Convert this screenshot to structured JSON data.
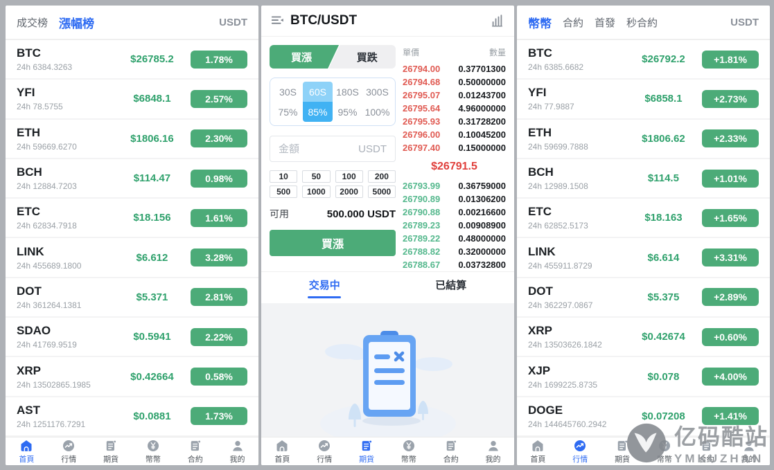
{
  "colors": {
    "accent_green": "#4cab78",
    "accent_red": "#e04f49",
    "accent_blue": "#2e6bf2",
    "sky_blue": "#41b2f3",
    "sky_blue_light": "#8ed2f8"
  },
  "watermark": {
    "title": "亿码酷站",
    "subtitle": "YMKUZHAN"
  },
  "nav": {
    "items": [
      {
        "label": "首頁",
        "icon": "home"
      },
      {
        "label": "行情",
        "icon": "trend"
      },
      {
        "label": "期貨",
        "icon": "futures-doc"
      },
      {
        "label": "幣幣",
        "icon": "coin"
      },
      {
        "label": "合約",
        "icon": "contract-doc"
      },
      {
        "label": "我的",
        "icon": "person"
      }
    ]
  },
  "left_panel": {
    "tab_volume": "成交榜",
    "tab_gainers": "漲幅榜",
    "currency": "USDT",
    "nav_active": 0,
    "coins": [
      {
        "symbol": "BTC",
        "volume": "24h 6384.3263",
        "price": "$26785.2",
        "change": "1.78%"
      },
      {
        "symbol": "YFI",
        "volume": "24h 78.5755",
        "price": "$6848.1",
        "change": "2.57%"
      },
      {
        "symbol": "ETH",
        "volume": "24h 59669.6270",
        "price": "$1806.16",
        "change": "2.30%"
      },
      {
        "symbol": "BCH",
        "volume": "24h 12884.7203",
        "price": "$114.47",
        "change": "0.98%"
      },
      {
        "symbol": "ETC",
        "volume": "24h 62834.7918",
        "price": "$18.156",
        "change": "1.61%"
      },
      {
        "symbol": "LINK",
        "volume": "24h 455689.1800",
        "price": "$6.612",
        "change": "3.28%"
      },
      {
        "symbol": "DOT",
        "volume": "24h 361264.1381",
        "price": "$5.371",
        "change": "2.81%"
      },
      {
        "symbol": "SDAO",
        "volume": "24h 41769.9519",
        "price": "$0.5941",
        "change": "2.22%"
      },
      {
        "symbol": "XRP",
        "volume": "24h 13502865.1985",
        "price": "$0.42664",
        "change": "0.58%"
      },
      {
        "symbol": "AST",
        "volume": "24h 1251176.7291",
        "price": "$0.0881",
        "change": "1.73%"
      }
    ]
  },
  "middle_panel": {
    "title": "BTC/USDT",
    "nav_active": 2,
    "trade": {
      "buy_up_tab": "買漲",
      "buy_down_tab": "買跌",
      "durations": [
        "30S",
        "60S",
        "180S",
        "300S"
      ],
      "durations_active": 1,
      "percents": [
        "75%",
        "85%",
        "95%",
        "100%"
      ],
      "percents_active": 1,
      "amount_placeholder": "金額",
      "amount_unit": "USDT",
      "quick_amounts": [
        "10",
        "50",
        "100",
        "200",
        "500",
        "1000",
        "2000",
        "5000"
      ],
      "available_label": "可用",
      "available_value": "500.000 USDT",
      "submit_label": "買漲"
    },
    "orderbook": {
      "price_header": "單價",
      "amount_header": "數量",
      "asks": [
        {
          "p": "26794.00",
          "q": "0.37701300"
        },
        {
          "p": "26794.68",
          "q": "0.50000000"
        },
        {
          "p": "26795.07",
          "q": "0.01243700"
        },
        {
          "p": "26795.64",
          "q": "4.96000000"
        },
        {
          "p": "26795.93",
          "q": "0.31728200"
        },
        {
          "p": "26796.00",
          "q": "0.10045200"
        },
        {
          "p": "26797.40",
          "q": "0.15000000"
        }
      ],
      "current_price": "$26791.5",
      "bids": [
        {
          "p": "26793.99",
          "q": "0.36759000"
        },
        {
          "p": "26790.89",
          "q": "0.01306200"
        },
        {
          "p": "26790.88",
          "q": "0.00216600"
        },
        {
          "p": "26789.23",
          "q": "0.00908900"
        },
        {
          "p": "26789.22",
          "q": "0.48000000"
        },
        {
          "p": "26788.82",
          "q": "0.32000000"
        },
        {
          "p": "26788.67",
          "q": "0.03732800"
        }
      ]
    },
    "orders_tabs": {
      "trading": "交易中",
      "settled": "已結算"
    }
  },
  "right_panel": {
    "tabs": [
      "幣幣",
      "合約",
      "首發",
      "秒合約"
    ],
    "currency": "USDT",
    "nav_active": 1,
    "coins": [
      {
        "symbol": "BTC",
        "volume": "24h 6385.6682",
        "price": "$26792.2",
        "change": "+1.81%"
      },
      {
        "symbol": "YFI",
        "volume": "24h 77.9887",
        "price": "$6858.1",
        "change": "+2.73%"
      },
      {
        "symbol": "ETH",
        "volume": "24h 59699.7888",
        "price": "$1806.62",
        "change": "+2.33%"
      },
      {
        "symbol": "BCH",
        "volume": "24h 12989.1508",
        "price": "$114.5",
        "change": "+1.01%"
      },
      {
        "symbol": "ETC",
        "volume": "24h 62852.5173",
        "price": "$18.163",
        "change": "+1.65%"
      },
      {
        "symbol": "LINK",
        "volume": "24h 455911.8729",
        "price": "$6.614",
        "change": "+3.31%"
      },
      {
        "symbol": "DOT",
        "volume": "24h 362297.0867",
        "price": "$5.375",
        "change": "+2.89%"
      },
      {
        "symbol": "XRP",
        "volume": "24h 13503626.1842",
        "price": "$0.42674",
        "change": "+0.60%"
      },
      {
        "symbol": "XJP",
        "volume": "24h 1699225.8735",
        "price": "$0.078",
        "change": "+4.00%"
      },
      {
        "symbol": "DOGE",
        "volume": "24h 144645760.2942",
        "price": "$0.07208",
        "change": "+1.41%"
      }
    ]
  },
  "icons": {
    "middle_header_left": "menu-list-icon",
    "middle_header_right": "kline-chart-icon",
    "nav_icons": [
      "home-icon",
      "trend-icon",
      "futures-doc-icon",
      "coin-yen-icon",
      "contract-doc-icon",
      "person-icon"
    ]
  }
}
